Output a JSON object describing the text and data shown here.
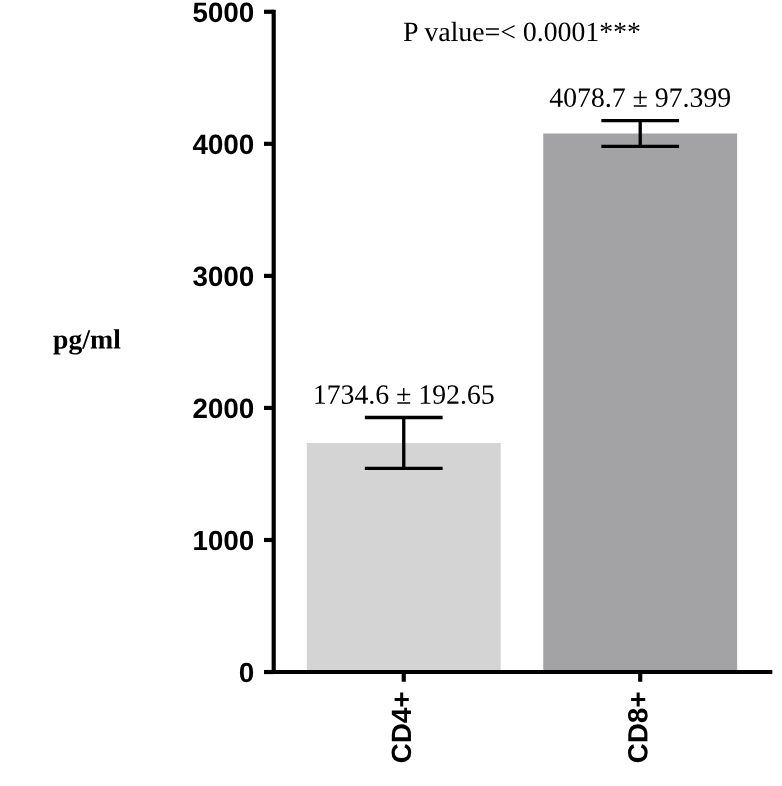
{
  "chart_data": {
    "type": "bar",
    "ylabel": "pg/ml",
    "categories": [
      "CD4+",
      "CD8+"
    ],
    "values": [
      1734.6,
      4078.7
    ],
    "colors": [
      "#d4d4d4",
      "#a3a3a5"
    ],
    "errors": [
      192.65,
      97.399
    ],
    "value_labels": [
      "1734.6 ± 192.65",
      "4078.7 ± 97.399"
    ],
    "annotations": [
      "P value=< 0.0001***"
    ],
    "ylim": [
      0,
      5000
    ],
    "yticks": [
      0,
      1000,
      2000,
      3000,
      4000,
      5000
    ],
    "grid": false,
    "legend": false
  }
}
